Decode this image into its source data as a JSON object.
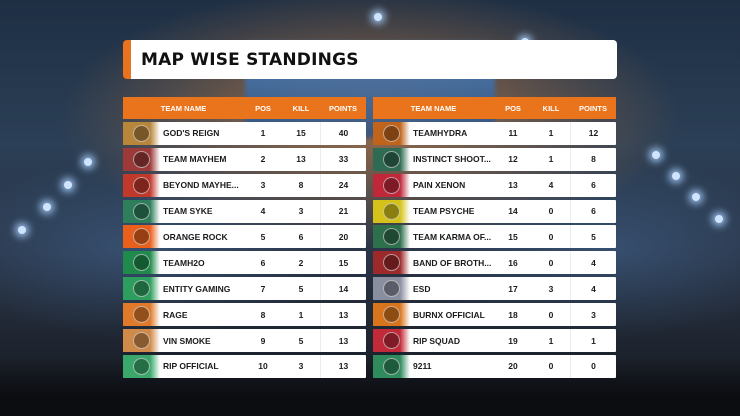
{
  "title": "MAP WISE STANDINGS",
  "columns": {
    "team": "TEAM NAME",
    "pos": "POS",
    "kill": "KILL",
    "points": "POINTS"
  },
  "colors": {
    "accent": "#ea741c",
    "row_bg": "#ffffff",
    "text": "#1a1a1a"
  },
  "left_table": [
    {
      "team": "GOD'S REIGN",
      "pos": "1",
      "kill": "15",
      "points": "40",
      "logo_color": "#b8863b",
      "logo_icon": "crest-icon"
    },
    {
      "team": "TEAM MAYHEM",
      "pos": "2",
      "kill": "13",
      "points": "33",
      "logo_color": "#9c3a3a",
      "logo_icon": "mask-icon"
    },
    {
      "team": "BEYOND MAYHE...",
      "pos": "3",
      "kill": "8",
      "points": "24",
      "logo_color": "#c0392b",
      "logo_icon": "skull-icon"
    },
    {
      "team": "TEAM SYKE",
      "pos": "4",
      "kill": "3",
      "points": "21",
      "logo_color": "#2e7d5b",
      "logo_icon": "crest-icon"
    },
    {
      "team": "ORANGE ROCK",
      "pos": "5",
      "kill": "6",
      "points": "20",
      "logo_color": "#e8601c",
      "logo_icon": "rock-icon"
    },
    {
      "team": "TEAMH2O",
      "pos": "6",
      "kill": "2",
      "points": "15",
      "logo_color": "#1f8a4c",
      "logo_icon": "drop-icon"
    },
    {
      "team": "ENTITY GAMING",
      "pos": "7",
      "kill": "5",
      "points": "14",
      "logo_color": "#2e9e5e",
      "logo_icon": "crest-icon"
    },
    {
      "team": "RAGE",
      "pos": "8",
      "kill": "1",
      "points": "13",
      "logo_color": "#e07a2a",
      "logo_icon": "flame-icon"
    },
    {
      "team": "VIN SMOKE",
      "pos": "9",
      "kill": "5",
      "points": "13",
      "logo_color": "#d08a4a",
      "logo_icon": "crest-icon"
    },
    {
      "team": "RIP OFFICIAL",
      "pos": "10",
      "kill": "3",
      "points": "13",
      "logo_color": "#3aa86b",
      "logo_icon": "skull-icon"
    }
  ],
  "right_table": [
    {
      "team": "TEAMHYDRA",
      "pos": "11",
      "kill": "1",
      "points": "12",
      "logo_color": "#c0641c",
      "logo_icon": "hydra-icon"
    },
    {
      "team": "INSTINCT SHOOT...",
      "pos": "12",
      "kill": "1",
      "points": "8",
      "logo_color": "#2f6b52",
      "logo_icon": "crest-icon"
    },
    {
      "team": "PAIN XENON",
      "pos": "13",
      "kill": "4",
      "points": "6",
      "logo_color": "#c0283a",
      "logo_icon": "skull-icon"
    },
    {
      "team": "TEAM PSYCHE",
      "pos": "14",
      "kill": "0",
      "points": "6",
      "logo_color": "#d4c21a",
      "logo_icon": "crest-icon"
    },
    {
      "team": "TEAM KARMA OF...",
      "pos": "15",
      "kill": "0",
      "points": "5",
      "logo_color": "#2e6f4c",
      "logo_icon": "crest-icon"
    },
    {
      "team": "BAND OF BROTH...",
      "pos": "16",
      "kill": "0",
      "points": "4",
      "logo_color": "#9c2a2a",
      "logo_icon": "crest-icon"
    },
    {
      "team": "ESD",
      "pos": "17",
      "kill": "3",
      "points": "4",
      "logo_color": "#8a8fa0",
      "logo_icon": "crest-icon"
    },
    {
      "team": "BURNX OFFICIAL",
      "pos": "18",
      "kill": "0",
      "points": "3",
      "logo_color": "#d8751c",
      "logo_icon": "flame-icon"
    },
    {
      "team": "RIP SQUAD",
      "pos": "19",
      "kill": "1",
      "points": "1",
      "logo_color": "#c22a3a",
      "logo_icon": "skull-icon"
    },
    {
      "team": "9211",
      "pos": "20",
      "kill": "0",
      "points": "0",
      "logo_color": "#2f8a5c",
      "logo_icon": "crest-icon"
    }
  ]
}
